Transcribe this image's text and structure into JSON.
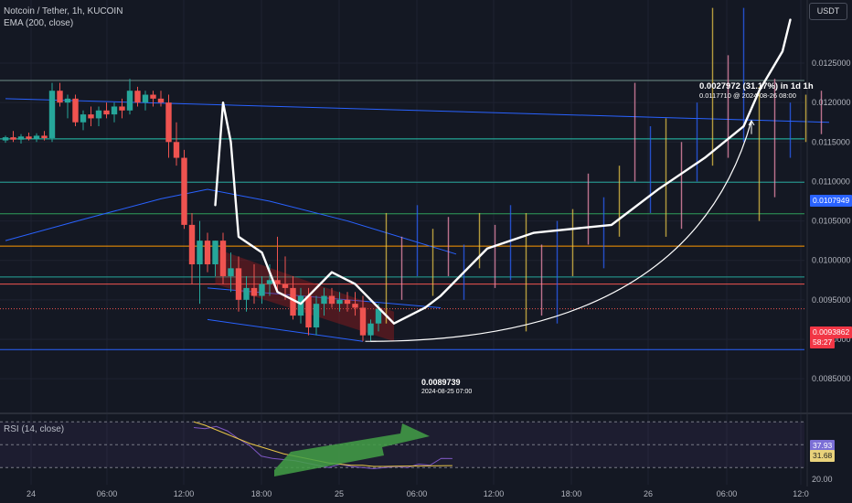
{
  "header": {
    "title": "Notcoin / Tether, 1h, KUCOIN",
    "ema_label": "EMA (200, close)"
  },
  "currency": "USDT",
  "price_axis": {
    "ticks": [
      "0.0125000",
      "0.0120000",
      "0.0115000",
      "0.0110000",
      "0.0105000",
      "0.0100000",
      "0.0095000",
      "0.0090000",
      "0.0085000"
    ],
    "ema_tag": "0.0107949",
    "last_price_tag": "0.0093862",
    "countdown_tag": "58:27"
  },
  "time_axis": {
    "ticks": [
      "24",
      "06:00",
      "12:00",
      "18:00",
      "25",
      "06:00",
      "12:00",
      "18:00",
      "26",
      "06:00",
      "12:0"
    ]
  },
  "rsi": {
    "label": "RSI (14, close)",
    "value_tag": "37.93",
    "ma_tag": "31.68",
    "ticks": [
      "20.00"
    ]
  },
  "annotations": {
    "projection_main": "0.0027972 (31.17%) in 1d 1h",
    "projection_sub": "0.0117710 @ 2024-08-26 08:00",
    "low_price": "0.0089739",
    "low_date": "2024-08-25 07:00"
  },
  "colors": {
    "background": "#141823",
    "bull": "#26a69a",
    "bear": "#ef5350",
    "ema": "#2962ff",
    "projection": "#ffffff",
    "rsi": "#7e57c2",
    "rsi_ma": "#e8c547",
    "arrow": "#43a047"
  },
  "chart_data": {
    "type": "candlestick",
    "symbol": "Notcoin / Tether",
    "interval": "1h",
    "exchange": "KUCOIN",
    "ylim": [
      0.0082,
      0.0133
    ],
    "candles": [
      {
        "o": 0.01152,
        "h": 0.01158,
        "l": 0.01149,
        "c": 0.01156
      },
      {
        "o": 0.01156,
        "h": 0.01164,
        "l": 0.0115,
        "c": 0.01153
      },
      {
        "o": 0.01153,
        "h": 0.0116,
        "l": 0.01148,
        "c": 0.01157
      },
      {
        "o": 0.01157,
        "h": 0.01162,
        "l": 0.01152,
        "c": 0.01154
      },
      {
        "o": 0.01154,
        "h": 0.01161,
        "l": 0.0115,
        "c": 0.01158
      },
      {
        "o": 0.01158,
        "h": 0.01164,
        "l": 0.01152,
        "c": 0.01155
      },
      {
        "o": 0.01155,
        "h": 0.01225,
        "l": 0.0115,
        "c": 0.01215
      },
      {
        "o": 0.01215,
        "h": 0.01225,
        "l": 0.01195,
        "c": 0.012
      },
      {
        "o": 0.012,
        "h": 0.0121,
        "l": 0.0118,
        "c": 0.01205
      },
      {
        "o": 0.01205,
        "h": 0.0121,
        "l": 0.0117,
        "c": 0.01175
      },
      {
        "o": 0.01175,
        "h": 0.0119,
        "l": 0.01165,
        "c": 0.01185
      },
      {
        "o": 0.01185,
        "h": 0.01195,
        "l": 0.0117,
        "c": 0.0118
      },
      {
        "o": 0.0118,
        "h": 0.01195,
        "l": 0.0117,
        "c": 0.0119
      },
      {
        "o": 0.0119,
        "h": 0.012,
        "l": 0.0118,
        "c": 0.01185
      },
      {
        "o": 0.01185,
        "h": 0.012,
        "l": 0.01175,
        "c": 0.01195
      },
      {
        "o": 0.01195,
        "h": 0.01205,
        "l": 0.0118,
        "c": 0.0119
      },
      {
        "o": 0.0119,
        "h": 0.0123,
        "l": 0.01185,
        "c": 0.01215
      },
      {
        "o": 0.01215,
        "h": 0.0122,
        "l": 0.01195,
        "c": 0.012
      },
      {
        "o": 0.012,
        "h": 0.01215,
        "l": 0.0119,
        "c": 0.0121
      },
      {
        "o": 0.0121,
        "h": 0.01215,
        "l": 0.01195,
        "c": 0.01205
      },
      {
        "o": 0.01205,
        "h": 0.01215,
        "l": 0.01195,
        "c": 0.012
      },
      {
        "o": 0.012,
        "h": 0.0121,
        "l": 0.0113,
        "c": 0.0115
      },
      {
        "o": 0.0115,
        "h": 0.01175,
        "l": 0.0112,
        "c": 0.0113
      },
      {
        "o": 0.0113,
        "h": 0.0114,
        "l": 0.0104,
        "c": 0.01045
      },
      {
        "o": 0.01045,
        "h": 0.0106,
        "l": 0.0097,
        "c": 0.00995
      },
      {
        "o": 0.00995,
        "h": 0.0105,
        "l": 0.00945,
        "c": 0.01025
      },
      {
        "o": 0.01025,
        "h": 0.01035,
        "l": 0.00985,
        "c": 0.00995
      },
      {
        "o": 0.00995,
        "h": 0.01025,
        "l": 0.0098,
        "c": 0.01025
      },
      {
        "o": 0.01025,
        "h": 0.01035,
        "l": 0.0097,
        "c": 0.0098
      },
      {
        "o": 0.0098,
        "h": 0.0101,
        "l": 0.0096,
        "c": 0.0099
      },
      {
        "o": 0.0099,
        "h": 0.01005,
        "l": 0.00935,
        "c": 0.0095
      },
      {
        "o": 0.0095,
        "h": 0.0098,
        "l": 0.00935,
        "c": 0.00965
      },
      {
        "o": 0.00965,
        "h": 0.00995,
        "l": 0.00945,
        "c": 0.00955
      },
      {
        "o": 0.00955,
        "h": 0.0098,
        "l": 0.00945,
        "c": 0.0097
      },
      {
        "o": 0.0097,
        "h": 0.00995,
        "l": 0.00955,
        "c": 0.00975
      },
      {
        "o": 0.00975,
        "h": 0.0103,
        "l": 0.0096,
        "c": 0.0097
      },
      {
        "o": 0.0097,
        "h": 0.01005,
        "l": 0.0095,
        "c": 0.00965
      },
      {
        "o": 0.00965,
        "h": 0.0098,
        "l": 0.00925,
        "c": 0.0093
      },
      {
        "o": 0.0093,
        "h": 0.00965,
        "l": 0.0092,
        "c": 0.00955
      },
      {
        "o": 0.00955,
        "h": 0.00965,
        "l": 0.00905,
        "c": 0.00915
      },
      {
        "o": 0.00915,
        "h": 0.00955,
        "l": 0.00905,
        "c": 0.00945
      },
      {
        "o": 0.00945,
        "h": 0.00965,
        "l": 0.0093,
        "c": 0.00955
      },
      {
        "o": 0.00955,
        "h": 0.00965,
        "l": 0.0094,
        "c": 0.00945
      },
      {
        "o": 0.00945,
        "h": 0.0096,
        "l": 0.00935,
        "c": 0.0095
      },
      {
        "o": 0.0095,
        "h": 0.0096,
        "l": 0.00935,
        "c": 0.00945
      },
      {
        "o": 0.00945,
        "h": 0.0096,
        "l": 0.0093,
        "c": 0.0094
      },
      {
        "o": 0.0094,
        "h": 0.00955,
        "l": 0.008974,
        "c": 0.00905
      },
      {
        "o": 0.00905,
        "h": 0.00925,
        "l": 0.008974,
        "c": 0.0092
      },
      {
        "o": 0.0092,
        "h": 0.00945,
        "l": 0.0091,
        "c": 0.009386
      }
    ],
    "ema_200": [
      {
        "i": 0,
        "v": 0.01025
      },
      {
        "i": 10,
        "v": 0.01052
      },
      {
        "i": 20,
        "v": 0.01078
      },
      {
        "i": 26,
        "v": 0.0109
      },
      {
        "i": 34,
        "v": 0.01075
      },
      {
        "i": 44,
        "v": 0.0105
      },
      {
        "i": 58,
        "v": 0.01008
      }
    ],
    "ghost_bars": [
      {
        "i": 49,
        "h": 0.0106,
        "l": 0.0092
      },
      {
        "i": 51,
        "h": 0.0103,
        "l": 0.0095
      },
      {
        "i": 53,
        "h": 0.0107,
        "l": 0.0098
      },
      {
        "i": 55,
        "h": 0.0104,
        "l": 0.00955
      },
      {
        "i": 57,
        "h": 0.01055,
        "l": 0.0098
      },
      {
        "i": 59,
        "h": 0.0102,
        "l": 0.0095
      },
      {
        "i": 61,
        "h": 0.0106,
        "l": 0.0099
      },
      {
        "i": 63,
        "h": 0.01045,
        "l": 0.00965
      },
      {
        "i": 65,
        "h": 0.0107,
        "l": 0.00975
      },
      {
        "i": 67,
        "h": 0.0106,
        "l": 0.0091
      },
      {
        "i": 69,
        "h": 0.0102,
        "l": 0.0093
      },
      {
        "i": 71,
        "h": 0.0105,
        "l": 0.0092
      },
      {
        "i": 73,
        "h": 0.01065,
        "l": 0.0098
      },
      {
        "i": 75,
        "h": 0.0111,
        "l": 0.0102
      },
      {
        "i": 77,
        "h": 0.0108,
        "l": 0.0099
      },
      {
        "i": 79,
        "h": 0.0112,
        "l": 0.0103
      },
      {
        "i": 81,
        "h": 0.01225,
        "l": 0.011
      },
      {
        "i": 83,
        "h": 0.0117,
        "l": 0.0106
      },
      {
        "i": 85,
        "h": 0.0118,
        "l": 0.0103
      },
      {
        "i": 87,
        "h": 0.0115,
        "l": 0.0104
      },
      {
        "i": 89,
        "h": 0.012,
        "l": 0.011
      },
      {
        "i": 91,
        "h": 0.0132,
        "l": 0.0112
      },
      {
        "i": 93,
        "h": 0.0126,
        "l": 0.0113
      },
      {
        "i": 95,
        "h": 0.0132,
        "l": 0.0115
      },
      {
        "i": 97,
        "h": 0.0122,
        "l": 0.0105
      },
      {
        "i": 99,
        "h": 0.0123,
        "l": 0.0108
      },
      {
        "i": 101,
        "h": 0.012,
        "l": 0.0113
      },
      {
        "i": 103,
        "h": 0.0121,
        "l": 0.0115
      },
      {
        "i": 105,
        "h": 0.01215,
        "l": 0.0116
      }
    ],
    "horizontal_levels": [
      {
        "price": 0.01228,
        "color": "#6f8f8a"
      },
      {
        "price": 0.01154,
        "color": "#26c6b0"
      },
      {
        "price": 0.01099,
        "color": "#26a69a"
      },
      {
        "price": 0.01059,
        "color": "#2e9e5a"
      },
      {
        "price": 0.01018,
        "color": "#ff9800"
      },
      {
        "price": 0.00979,
        "color": "#26a69a"
      },
      {
        "price": 0.0097,
        "color": "#ef5350"
      },
      {
        "price": 0.009386,
        "color": "#ef5350"
      },
      {
        "price": 0.00887,
        "color": "#2962ff"
      }
    ],
    "trendlines": [
      {
        "from": {
          "i": 0,
          "p": 0.01205
        },
        "to": {
          "i": 106,
          "p": 0.01175
        }
      },
      {
        "from": {
          "i": 26,
          "p": 0.00965
        },
        "to": {
          "i": 56,
          "p": 0.0094
        }
      },
      {
        "from": {
          "i": 26,
          "p": 0.00925
        },
        "to": {
          "i": 46,
          "p": 0.008974
        }
      }
    ],
    "rsi": {
      "ylim": [
        15,
        75
      ],
      "values": [
        65,
        64,
        66,
        62,
        55,
        49,
        40,
        38,
        37,
        36,
        34,
        32,
        30,
        33,
        31,
        30,
        29,
        30,
        31,
        30,
        33,
        32,
        38,
        37.93
      ],
      "ma_values": [
        70,
        67,
        63,
        59,
        55,
        51,
        48,
        45,
        42,
        40,
        38,
        36,
        34,
        33,
        32,
        32,
        31,
        31,
        31.2,
        31.3,
        31.4,
        31.5,
        31.6,
        31.68
      ],
      "ref_levels": [
        70,
        50,
        30
      ]
    }
  }
}
